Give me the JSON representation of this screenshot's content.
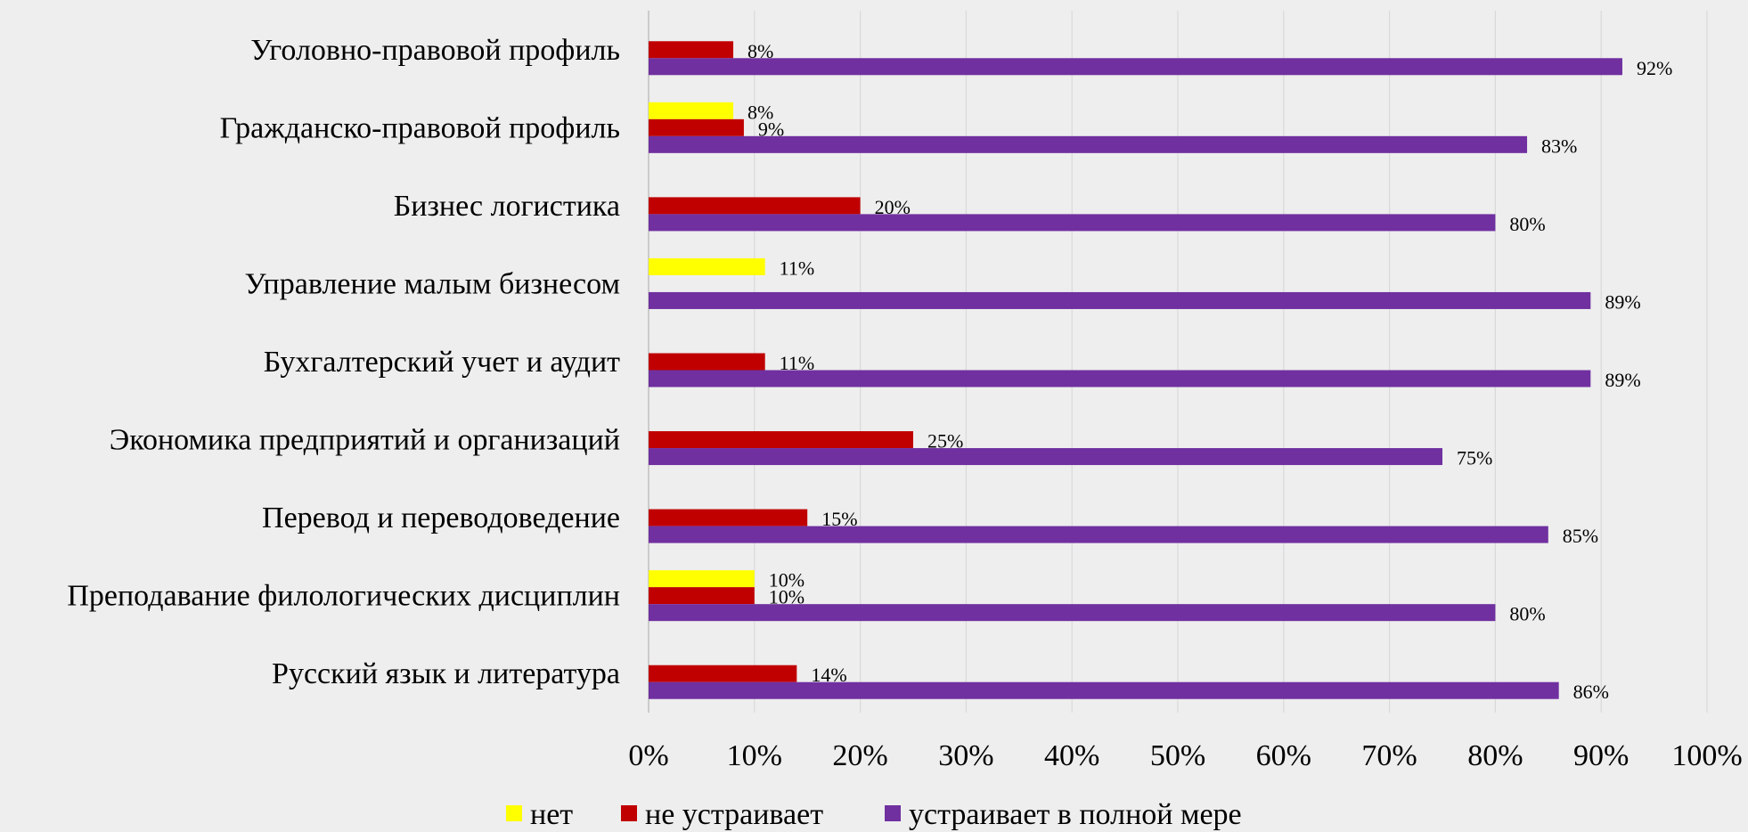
{
  "chart_data": {
    "type": "bar",
    "orientation": "horizontal",
    "categories": [
      "Уголовно-правовой профиль",
      "Гражданско-правовой профиль",
      "Бизнес логистика",
      "Управление малым бизнесом",
      "Бухгалтерский учет и аудит",
      "Экономика предприятий и организаций",
      "Перевод и переводоведение",
      "Преподавание филологических дисциплин",
      "Русский язык и литература"
    ],
    "series": [
      {
        "name": "нет",
        "color": "#ffff00",
        "values": [
          null,
          8,
          null,
          11,
          null,
          null,
          null,
          10,
          null
        ]
      },
      {
        "name": "не устраивает",
        "color": "#c00000",
        "values": [
          8,
          9,
          20,
          null,
          11,
          25,
          15,
          10,
          14
        ]
      },
      {
        "name": "устраивает в полной мере",
        "color": "#7030a0",
        "values": [
          92,
          83,
          80,
          89,
          89,
          75,
          85,
          80,
          86
        ]
      }
    ],
    "value_unit": "%",
    "xlim": [
      0,
      100
    ],
    "xticks": [
      "0%",
      "10%",
      "20%",
      "30%",
      "40%",
      "50%",
      "60%",
      "70%",
      "80%",
      "90%",
      "100%"
    ],
    "grid": true,
    "legend_position": "bottom"
  }
}
